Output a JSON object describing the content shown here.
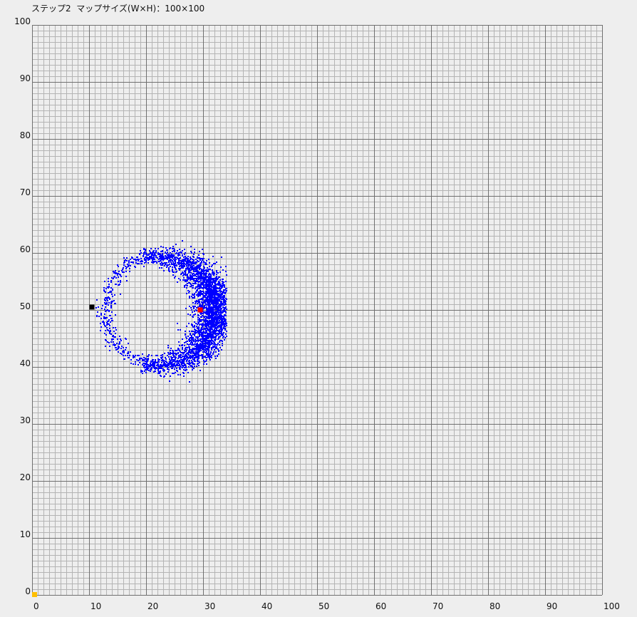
{
  "status": {
    "step_label": "ステップ2",
    "map_size_label": "マップサイズ(W×H)",
    "map_size_value": "100×100"
  },
  "colors": {
    "background": "#eeeeee",
    "minor_grid": "#b4b4b4",
    "major_grid": "#707070",
    "particles": "#0000ff",
    "estimate_marker": "#ff0000",
    "true_marker": "#000000",
    "origin_marker": "#ffbf00"
  },
  "chart_data": {
    "type": "scatter",
    "map": {
      "width": 100,
      "height": 100
    },
    "xlim": [
      0,
      100
    ],
    "ylim": [
      0,
      100
    ],
    "x_ticks": [
      "0",
      "10",
      "20",
      "30",
      "40",
      "50",
      "60",
      "70",
      "80",
      "90",
      "100"
    ],
    "y_ticks": [
      "0",
      "10",
      "20",
      "30",
      "40",
      "50",
      "60",
      "70",
      "80",
      "90",
      "100"
    ],
    "minor_grid_step": 1,
    "major_grid_step": 10,
    "particle_cloud": {
      "shape": "crescent ring",
      "center": [
        20.5,
        50
      ],
      "radius_range": [
        7.5,
        13
      ],
      "x_range": [
        6,
        34
      ],
      "y_range": [
        36,
        64
      ],
      "densest_side": "right"
    },
    "markers": [
      {
        "name": "estimate",
        "x": 29.5,
        "y": 50,
        "color": "#ff0000"
      },
      {
        "name": "true-position",
        "x": 10.5,
        "y": 50.5,
        "color": "#000000"
      },
      {
        "name": "origin",
        "x": 0.5,
        "y": 0,
        "color": "#ffbf00"
      }
    ]
  }
}
